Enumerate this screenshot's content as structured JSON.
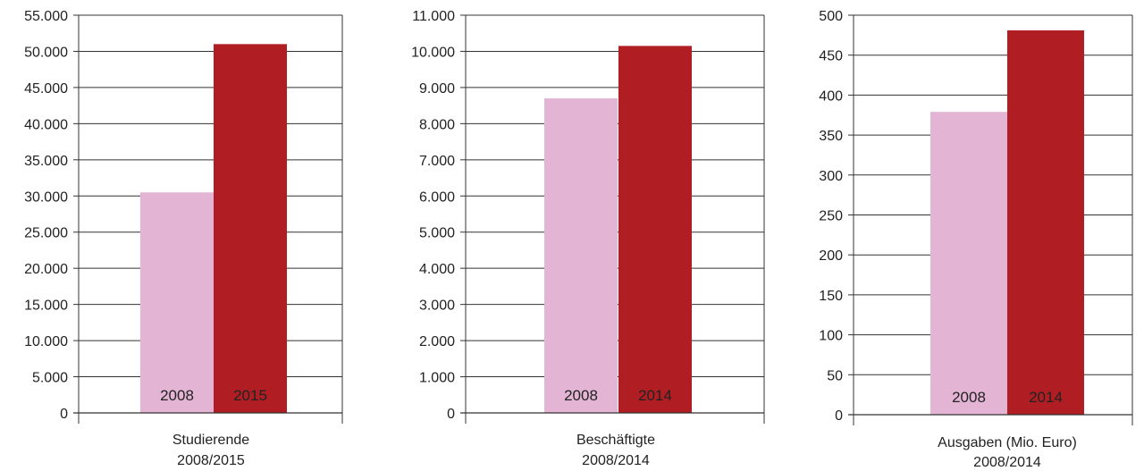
{
  "chart_data": [
    {
      "type": "bar",
      "categories": [
        "2008",
        "2015"
      ],
      "values": [
        30500,
        51000
      ],
      "colors": [
        "#e3b4d4",
        "#b01e23"
      ],
      "caption_lines": [
        "Studierende",
        "2008/2015"
      ],
      "ylim": [
        0,
        55000
      ],
      "yticks": [
        "55.000",
        "50.000",
        "45.000",
        "40.000",
        "35.000",
        "30.000",
        "25.000",
        "20.000",
        "15.000",
        "10.000",
        "5.000",
        "0"
      ],
      "grid": true
    },
    {
      "type": "bar",
      "categories": [
        "2008",
        "2014"
      ],
      "values": [
        8700,
        10150
      ],
      "colors": [
        "#e3b4d4",
        "#b01e23"
      ],
      "caption_lines": [
        "Beschäftigte",
        "2008/2014"
      ],
      "ylim": [
        0,
        11000
      ],
      "yticks": [
        "11.000",
        "10.000",
        "9.000",
        "8.000",
        "7.000",
        "6.000",
        "5.000",
        "4.000",
        "3.000",
        "2.000",
        "1.000",
        "0"
      ],
      "grid": true
    },
    {
      "type": "bar",
      "categories": [
        "2008",
        "2014"
      ],
      "values": [
        379,
        481
      ],
      "colors": [
        "#e3b4d4",
        "#b01e23"
      ],
      "caption_lines": [
        "Ausgaben (Mio. Euro)",
        "2008/2014"
      ],
      "ylim": [
        0,
        500
      ],
      "yticks": [
        "500",
        "450",
        "400",
        "350",
        "300",
        "250",
        "200",
        "150",
        "100",
        "50",
        "0"
      ],
      "grid": true
    }
  ]
}
